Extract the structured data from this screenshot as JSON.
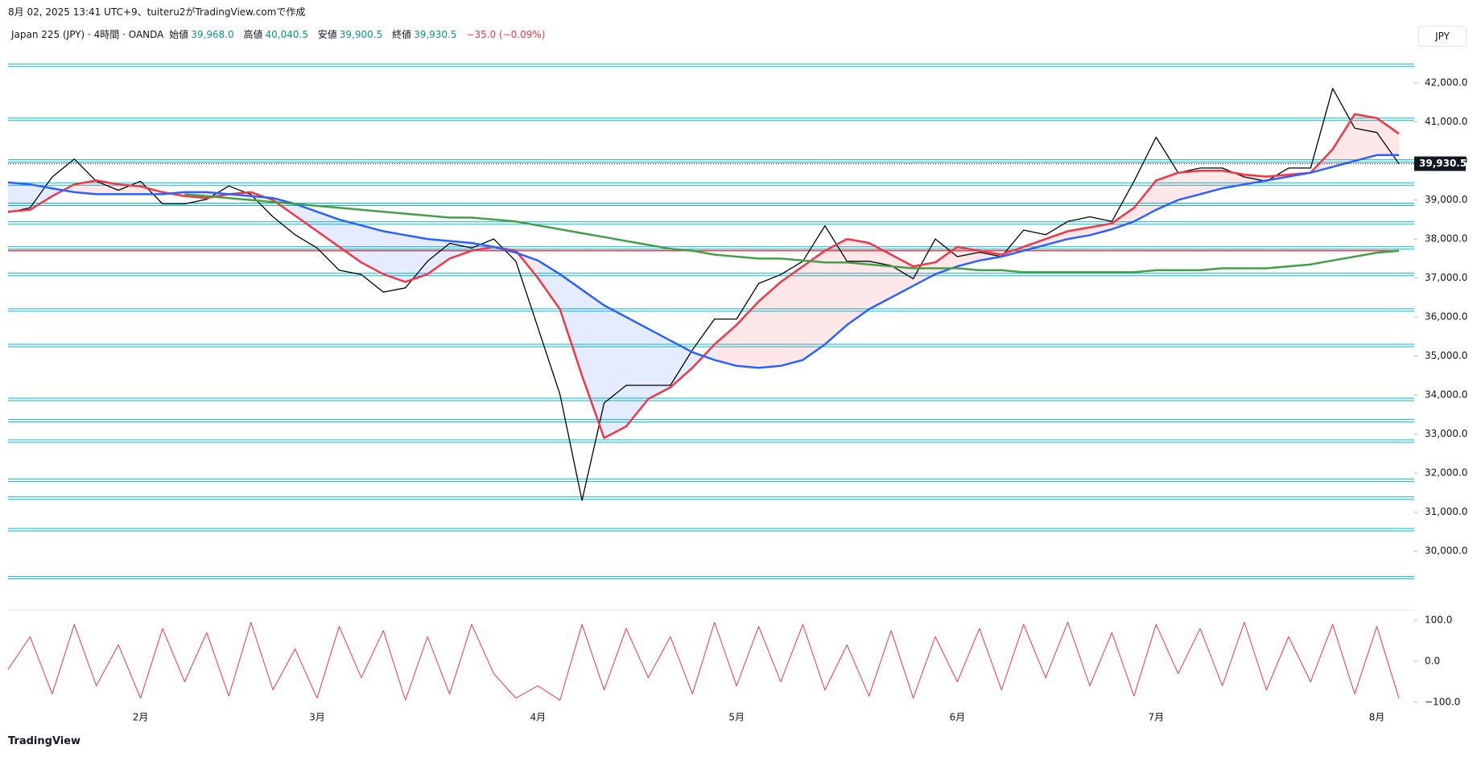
{
  "header": {
    "title": "8月 02, 2025 13:41 UTC+9、tuiteru2がTradingView.comで作成"
  },
  "legend": {
    "symbol": "Japan 225 (JPY) · 4時間 · OANDA",
    "open_label": "始値",
    "open": "39,968.0",
    "high_label": "高値",
    "high": "40,040.5",
    "low_label": "安値",
    "low": "39,900.5",
    "close_label": "終値",
    "close": "39,930.5",
    "change": "−35.0 (−0.09%)"
  },
  "currency": "JPY",
  "footer": "TradingView",
  "chart_data": [
    {
      "type": "line",
      "categories": [
        null,
        null,
        null,
        null,
        null,
        null,
        "2月",
        null,
        null,
        null,
        null,
        null,
        null,
        null,
        "3月",
        null,
        null,
        null,
        null,
        null,
        null,
        null,
        null,
        null,
        "4月",
        null,
        null,
        null,
        null,
        null,
        null,
        null,
        null,
        "5月",
        null,
        null,
        null,
        null,
        null,
        null,
        null,
        null,
        null,
        "6月",
        null,
        null,
        null,
        null,
        null,
        null,
        null,
        null,
        "7月",
        null,
        null,
        null,
        null,
        null,
        null,
        null,
        null,
        null,
        "8月",
        null
      ],
      "series": [
        {
          "name": "price",
          "color": "#000000",
          "values": [
            38680,
            38800,
            39590,
            40050,
            39480,
            39250,
            39480,
            38900,
            38900,
            39020,
            39360,
            39140,
            38570,
            38110,
            37770,
            37200,
            37090,
            36640,
            36750,
            37430,
            37890,
            37770,
            38000,
            37430,
            35730,
            34020,
            31300,
            33800,
            34250,
            34250,
            34250,
            35160,
            35950,
            35950,
            36860,
            37090,
            37430,
            38340,
            37430,
            37430,
            37320,
            36980,
            38000,
            37550,
            37660,
            37550,
            38230,
            38110,
            38450,
            38570,
            38450,
            39480,
            40610,
            39700,
            39820,
            39820,
            39590,
            39480,
            39820,
            39820,
            41860,
            40840,
            40730,
            39930
          ]
        },
        {
          "name": "ma-fast",
          "color": "#f23645",
          "values": [
            38700,
            38750,
            39100,
            39400,
            39500,
            39400,
            39350,
            39200,
            39100,
            39050,
            39150,
            39200,
            39000,
            38600,
            38200,
            37800,
            37400,
            37100,
            36900,
            37100,
            37500,
            37700,
            37800,
            37700,
            37000,
            36200,
            34500,
            32900,
            33200,
            33900,
            34200,
            34700,
            35300,
            35800,
            36400,
            36900,
            37300,
            37700,
            38000,
            37900,
            37600,
            37300,
            37400,
            37800,
            37700,
            37600,
            37800,
            38000,
            38200,
            38300,
            38400,
            38800,
            39500,
            39700,
            39750,
            39750,
            39650,
            39600,
            39650,
            39700,
            40300,
            41200,
            41100,
            40700
          ]
        },
        {
          "name": "ma-mid",
          "color": "#2962ff",
          "values": [
            39450,
            39400,
            39300,
            39200,
            39150,
            39150,
            39150,
            39150,
            39200,
            39200,
            39150,
            39100,
            39050,
            38900,
            38700,
            38500,
            38350,
            38200,
            38100,
            38000,
            37950,
            37900,
            37800,
            37650,
            37450,
            37100,
            36700,
            36300,
            36000,
            35700,
            35400,
            35100,
            34900,
            34750,
            34700,
            34750,
            34900,
            35300,
            35800,
            36200,
            36500,
            36800,
            37100,
            37300,
            37450,
            37550,
            37700,
            37850,
            38000,
            38100,
            38250,
            38450,
            38750,
            39000,
            39150,
            39300,
            39400,
            39500,
            39600,
            39700,
            39850,
            40000,
            40150,
            40150
          ]
        },
        {
          "name": "ma-slow",
          "color": "#43a047",
          "values": [
            null,
            null,
            null,
            null,
            null,
            null,
            null,
            null,
            39150,
            39100,
            39050,
            39000,
            38950,
            38900,
            38850,
            38800,
            38750,
            38700,
            38650,
            38600,
            38550,
            38550,
            38500,
            38450,
            38350,
            38250,
            38150,
            38050,
            37950,
            37850,
            37750,
            37700,
            37600,
            37550,
            37500,
            37500,
            37450,
            37400,
            37400,
            37350,
            37300,
            37250,
            37250,
            37250,
            37200,
            37200,
            37150,
            37150,
            37150,
            37150,
            37150,
            37150,
            37200,
            37200,
            37200,
            37250,
            37250,
            37250,
            37300,
            37350,
            37450,
            37550,
            37650,
            37700
          ]
        }
      ],
      "levels": [
        42450,
        41070,
        40000,
        39410,
        38890,
        38410,
        37770,
        37090,
        36180,
        35270,
        33890,
        33340,
        32820,
        31820,
        31360,
        30550,
        29320
      ],
      "level_color": "#00bcd4",
      "key_level": 37700,
      "key_level_color": "#f23645",
      "last_price": {
        "value": 39930.5,
        "label": "39,930.5"
      },
      "ylim": [
        29200,
        42600
      ],
      "yticks": [
        {
          "value": 30000,
          "label": "30,000.0"
        },
        {
          "value": 31000,
          "label": "31,000.0"
        },
        {
          "value": 32000,
          "label": "32,000.0"
        },
        {
          "value": 33000,
          "label": "33,000.0"
        },
        {
          "value": 34000,
          "label": "34,000.0"
        },
        {
          "value": 35000,
          "label": "35,000.0"
        },
        {
          "value": 36000,
          "label": "36,000.0"
        },
        {
          "value": 37000,
          "label": "37,000.0"
        },
        {
          "value": 38000,
          "label": "38,000.0"
        },
        {
          "value": 39000,
          "label": "39,000.0"
        },
        {
          "value": 40000,
          "label": "40,000.0"
        },
        {
          "value": 41000,
          "label": "41,000.0"
        },
        {
          "value": 42000,
          "label": "42,000.0"
        }
      ],
      "grid": false
    },
    {
      "type": "line",
      "series": [
        {
          "name": "oscillator",
          "color": "#f23645",
          "values": [
            -20,
            60,
            -80,
            90,
            -60,
            40,
            -90,
            80,
            -50,
            70,
            -85,
            95,
            -70,
            30,
            -90,
            85,
            -40,
            75,
            -95,
            60,
            -80,
            90,
            -30,
            -90,
            -60,
            -95,
            90,
            -70,
            80,
            -40,
            60,
            -80,
            95,
            -60,
            85,
            -50,
            90,
            -70,
            40,
            -85,
            75,
            -90,
            60,
            -50,
            80,
            -70,
            90,
            -40,
            95,
            -60,
            70,
            -85,
            90,
            -30,
            80,
            -60,
            95,
            -70,
            60,
            -50,
            90,
            -80,
            85,
            -90
          ]
        }
      ],
      "ylim": [
        -110,
        110
      ],
      "yticks": [
        {
          "value": 100,
          "label": "100.0"
        },
        {
          "value": 0,
          "label": "0.0"
        },
        {
          "value": -100,
          "label": "−100.0"
        }
      ]
    }
  ]
}
